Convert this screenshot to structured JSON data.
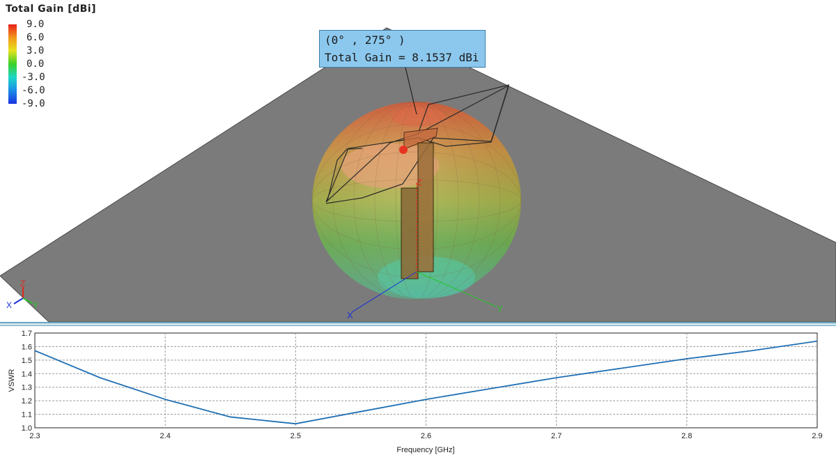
{
  "viewer": {
    "legend": {
      "title": "Total Gain [dBi]",
      "ticks": [
        "9.0",
        "6.0",
        "3.0",
        "0.0",
        "-3.0",
        "-6.0",
        "-9.0"
      ],
      "colormap": [
        "#e8201a",
        "#f39a1c",
        "#e6e21e",
        "#3ad12a",
        "#1fd6c9",
        "#1a8ee8",
        "#1a33e0"
      ]
    },
    "tooltip": {
      "line1": "(0° , 275° )",
      "line2": "Total Gain = 8.1537 dBi"
    },
    "axes_labels": {
      "x": "X",
      "y": "Y",
      "z": "Z"
    },
    "colors": {
      "ground_plane": "#7b7b7b",
      "x_axis": "#1a2fd8",
      "y_axis": "#27c42a",
      "z_axis": "#e02a1a",
      "tooltip_bg": "#8cc8ee"
    }
  },
  "chart_data": {
    "type": "line",
    "xlabel": "Frequency [GHz]",
    "ylabel": "VSWR",
    "xlim": [
      2.3,
      2.9
    ],
    "ylim": [
      1.0,
      1.7
    ],
    "xticks": [
      "2.3",
      "2.4",
      "2.5",
      "2.6",
      "2.7",
      "2.8",
      "2.9"
    ],
    "yticks": [
      "1.0",
      "1.1",
      "1.2",
      "1.3",
      "1.4",
      "1.5",
      "1.6",
      "1.7"
    ],
    "grid": true,
    "series": [
      {
        "color": "#1f6fb4",
        "x": [
          2.3,
          2.35,
          2.4,
          2.45,
          2.5,
          2.55,
          2.6,
          2.65,
          2.7,
          2.75,
          2.8,
          2.85,
          2.9
        ],
        "y": [
          1.57,
          1.37,
          1.21,
          1.08,
          1.03,
          1.12,
          1.21,
          1.29,
          1.37,
          1.44,
          1.51,
          1.57,
          1.64
        ]
      }
    ]
  }
}
